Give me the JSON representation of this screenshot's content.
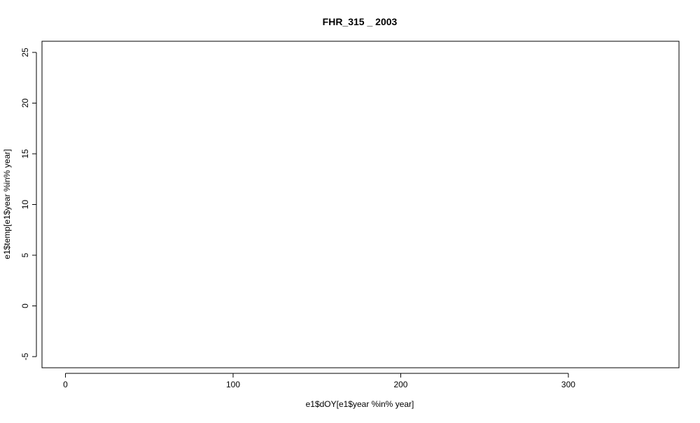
{
  "chart_data": {
    "type": "scatter",
    "title": "FHR_315 _ 2003",
    "xlabel": "e1$dOY[e1$year %in% year]",
    "ylabel": "e1$temp[e1$year %in% year]",
    "xlim": [
      -14,
      366
    ],
    "ylim": [
      -6.1,
      26.1
    ],
    "xticks": [
      0,
      100,
      200,
      300
    ],
    "yticks": [
      -5,
      0,
      5,
      10,
      15,
      20,
      25
    ],
    "xtick_labels": [
      "0",
      "100",
      "200",
      "300"
    ],
    "ytick_labels": [
      "-5",
      "0",
      "5",
      "10",
      "15",
      "20",
      "25"
    ],
    "series": [
      {
        "x": [],
        "y": []
      }
    ],
    "grid": false,
    "legend": "none"
  }
}
